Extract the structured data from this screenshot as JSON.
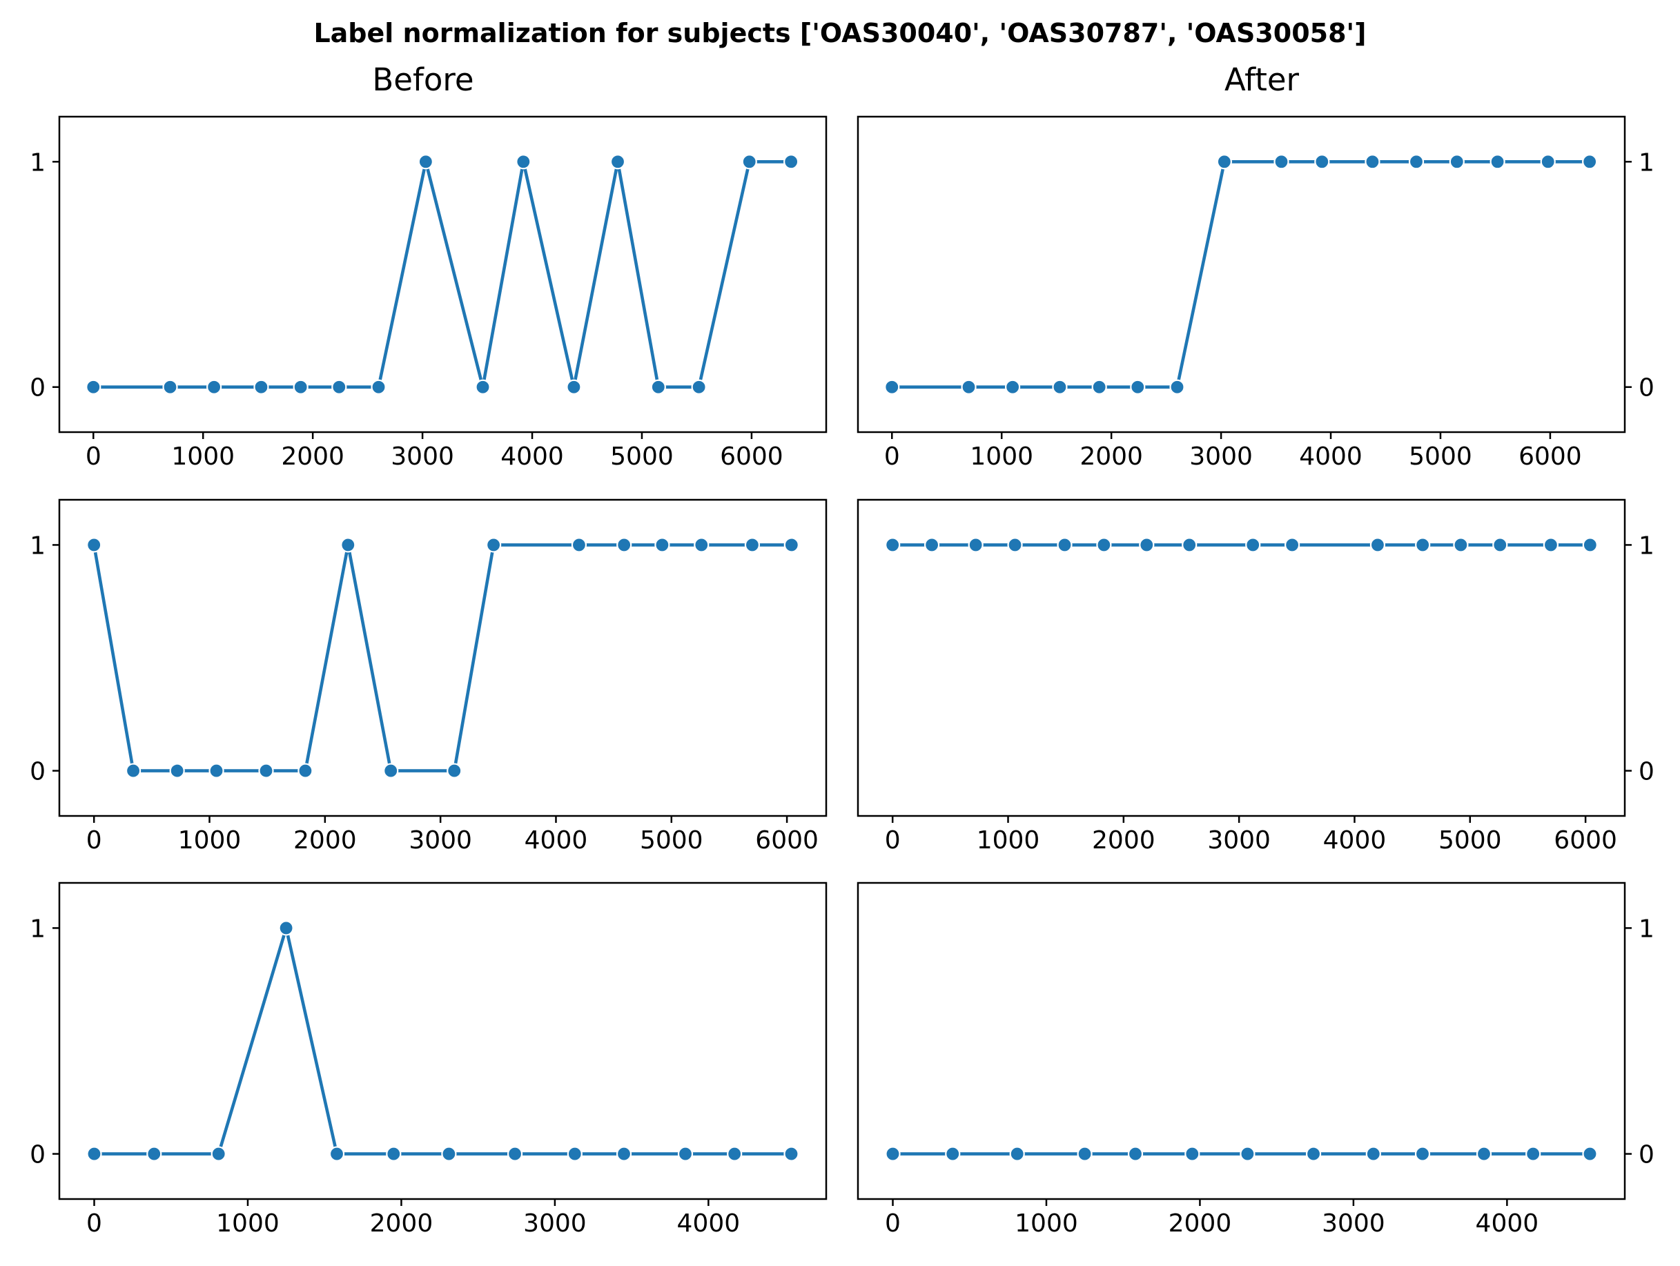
{
  "figure": {
    "suptitle": "Label normalization for subjects ['OAS30040', 'OAS30787', 'OAS30058']",
    "column_titles": [
      "Before",
      "After"
    ],
    "accent_color": "#1f77b4"
  },
  "chart_data": [
    {
      "type": "line",
      "panel": "Before",
      "row": 1,
      "x": [
        0,
        700,
        1100,
        1530,
        1890,
        2240,
        2600,
        3030,
        3550,
        3920,
        4380,
        4780,
        5150,
        5520,
        5980,
        6360
      ],
      "y": [
        0,
        0,
        0,
        0,
        0,
        0,
        0,
        1,
        0,
        1,
        0,
        1,
        0,
        0,
        1,
        1
      ],
      "xticks": [
        0,
        1000,
        2000,
        3000,
        4000,
        5000,
        6000
      ],
      "yticks": [
        0,
        1
      ],
      "xlim": [
        -310,
        6680
      ],
      "ylim": [
        -0.2,
        1.2
      ],
      "ytick_side": "left",
      "color": "#1f77b4",
      "markers": true
    },
    {
      "type": "line",
      "panel": "After",
      "row": 1,
      "x": [
        0,
        700,
        1100,
        1530,
        1890,
        2240,
        2600,
        3030,
        3550,
        3920,
        4380,
        4780,
        5150,
        5520,
        5980,
        6360
      ],
      "y": [
        0,
        0,
        0,
        0,
        0,
        0,
        0,
        1,
        1,
        1,
        1,
        1,
        1,
        1,
        1,
        1
      ],
      "xticks": [
        0,
        1000,
        2000,
        3000,
        4000,
        5000,
        6000
      ],
      "yticks": [
        0,
        1
      ],
      "xlim": [
        -310,
        6680
      ],
      "ylim": [
        -0.2,
        1.2
      ],
      "ytick_side": "right",
      "color": "#1f77b4",
      "markers": true
    },
    {
      "type": "line",
      "panel": "Before",
      "row": 2,
      "x": [
        0,
        340,
        720,
        1060,
        1490,
        1830,
        2200,
        2570,
        3120,
        3460,
        4200,
        4590,
        4920,
        5260,
        5700,
        6040
      ],
      "y": [
        1,
        0,
        0,
        0,
        0,
        0,
        1,
        0,
        0,
        1,
        1,
        1,
        1,
        1,
        1,
        1
      ],
      "xticks": [
        0,
        1000,
        2000,
        3000,
        4000,
        5000,
        6000
      ],
      "yticks": [
        0,
        1
      ],
      "xlim": [
        -300,
        6340
      ],
      "ylim": [
        -0.2,
        1.2
      ],
      "ytick_side": "left",
      "color": "#1f77b4",
      "markers": true
    },
    {
      "type": "line",
      "panel": "After",
      "row": 2,
      "x": [
        0,
        340,
        720,
        1060,
        1490,
        1830,
        2200,
        2570,
        3120,
        3460,
        4200,
        4590,
        4920,
        5260,
        5700,
        6040
      ],
      "y": [
        1,
        1,
        1,
        1,
        1,
        1,
        1,
        1,
        1,
        1,
        1,
        1,
        1,
        1,
        1,
        1
      ],
      "xticks": [
        0,
        1000,
        2000,
        3000,
        4000,
        5000,
        6000
      ],
      "yticks": [
        0,
        1
      ],
      "xlim": [
        -300,
        6340
      ],
      "ylim": [
        -0.2,
        1.2
      ],
      "ytick_side": "right",
      "color": "#1f77b4",
      "markers": true
    },
    {
      "type": "line",
      "panel": "Before",
      "row": 3,
      "x": [
        0,
        390,
        810,
        1250,
        1580,
        1950,
        2310,
        2740,
        3130,
        3450,
        3850,
        4170,
        4540
      ],
      "y": [
        0,
        0,
        0,
        1,
        0,
        0,
        0,
        0,
        0,
        0,
        0,
        0,
        0
      ],
      "xticks": [
        0,
        1000,
        2000,
        3000,
        4000
      ],
      "yticks": [
        0,
        1
      ],
      "xlim": [
        -227,
        4767
      ],
      "ylim": [
        -0.2,
        1.2
      ],
      "ytick_side": "left",
      "color": "#1f77b4",
      "markers": true
    },
    {
      "type": "line",
      "panel": "After",
      "row": 3,
      "x": [
        0,
        390,
        810,
        1250,
        1580,
        1950,
        2310,
        2740,
        3130,
        3450,
        3850,
        4170,
        4540
      ],
      "y": [
        0,
        0,
        0,
        0,
        0,
        0,
        0,
        0,
        0,
        0,
        0,
        0,
        0
      ],
      "xticks": [
        0,
        1000,
        2000,
        3000,
        4000
      ],
      "yticks": [
        0,
        1
      ],
      "xlim": [
        -227,
        4767
      ],
      "ylim": [
        -0.2,
        1.2
      ],
      "ytick_side": "right",
      "color": "#1f77b4",
      "markers": true
    }
  ]
}
